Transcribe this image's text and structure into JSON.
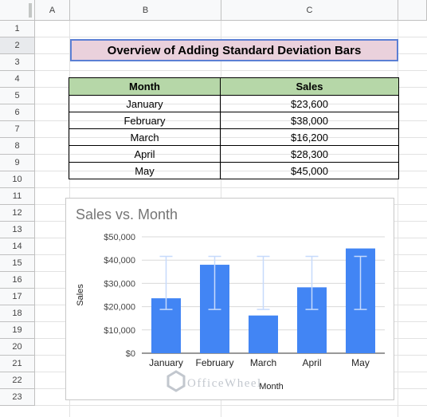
{
  "sheet": {
    "columns": [
      "A",
      "B",
      "C"
    ],
    "rows": [
      "1",
      "2",
      "3",
      "4",
      "5",
      "6",
      "7",
      "8",
      "9",
      "10",
      "11",
      "12",
      "13",
      "14",
      "15",
      "16",
      "17",
      "18",
      "19",
      "20",
      "21",
      "22",
      "23"
    ]
  },
  "title": "Overview of Adding Standard Deviation Bars",
  "table": {
    "headers": [
      "Month",
      "Sales"
    ],
    "rows": [
      [
        "January",
        "$23,600"
      ],
      [
        "February",
        "$38,000"
      ],
      [
        "March",
        "$16,200"
      ],
      [
        "April",
        "$28,300"
      ],
      [
        "May",
        "$45,000"
      ]
    ]
  },
  "watermark": "OfficeWheel",
  "colors": {
    "bar": "#4285f4",
    "error_bar": "#c6dafc",
    "header_fill": "#b6d7a8",
    "title_fill": "#ead1dc"
  },
  "chart_data": {
    "type": "bar",
    "title": "Sales vs. Month",
    "xlabel": "Month",
    "ylabel": "Sales",
    "categories": [
      "January",
      "February",
      "March",
      "April",
      "May"
    ],
    "values": [
      23600,
      38000,
      16200,
      28300,
      45000
    ],
    "error_bar_range": [
      18800,
      41600
    ],
    "ylim": [
      0,
      50000
    ],
    "yticks": [
      0,
      10000,
      20000,
      30000,
      40000,
      50000
    ],
    "ytick_labels": [
      "$0",
      "$10,000",
      "$20,000",
      "$30,000",
      "$40,000",
      "$50,000"
    ],
    "grid": true
  }
}
